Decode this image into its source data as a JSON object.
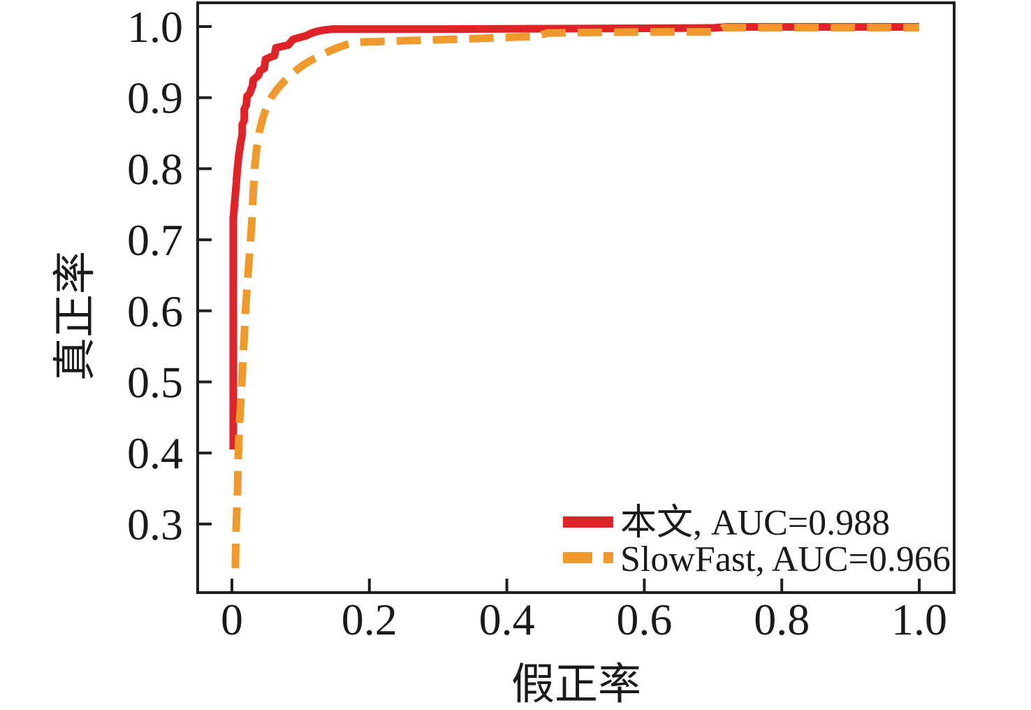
{
  "figure": {
    "background_color": "#ffffff",
    "axis_color": "#1f1f1f"
  },
  "axes": {
    "x": {
      "label": "假正率",
      "tick_labels": [
        "0",
        "0.2",
        "0.4",
        "0.6",
        "0.8",
        "1.0"
      ],
      "tick_values": [
        0,
        0.2,
        0.4,
        0.6,
        0.8,
        1.0
      ],
      "range": [
        -0.05,
        1.05
      ]
    },
    "y": {
      "label": "真正率",
      "tick_labels": [
        "1.0",
        "0.9",
        "0.8",
        "0.7",
        "0.6",
        "0.5",
        "0.4",
        "0.3"
      ],
      "tick_values": [
        1.0,
        0.9,
        0.8,
        0.7,
        0.6,
        0.5,
        0.4,
        0.3
      ],
      "range": [
        0.203,
        1.033
      ]
    }
  },
  "legend": {
    "position": "lower right",
    "items": [
      {
        "label": "本文, AUC=0.988",
        "color": "#de2428",
        "line_style": "solid"
      },
      {
        "label": "SlowFast, AUC=0.966",
        "color": "#f09a2d",
        "line_style": "dashed"
      }
    ]
  },
  "chart_data": {
    "type": "line",
    "subtype": "roc-curve",
    "title": "",
    "xlabel": "假正率",
    "ylabel": "真正率",
    "xlim": [
      -0.05,
      1.05
    ],
    "ylim": [
      0.203,
      1.033
    ],
    "x_ticks": [
      0,
      0.2,
      0.4,
      0.6,
      0.8,
      1.0
    ],
    "y_ticks": [
      0.3,
      0.4,
      0.5,
      0.6,
      0.7,
      0.8,
      0.9,
      1.0
    ],
    "grid": false,
    "legend_position": "lower right",
    "series": [
      {
        "name": "本文",
        "auc": 0.988,
        "color": "#de2428",
        "line_style": "solid",
        "points": [
          [
            0.002,
            0.405
          ],
          [
            0.002,
            0.55
          ],
          [
            0.002,
            0.65
          ],
          [
            0.002,
            0.73
          ],
          [
            0.004,
            0.752
          ],
          [
            0.006,
            0.775
          ],
          [
            0.008,
            0.8
          ],
          [
            0.01,
            0.818
          ],
          [
            0.013,
            0.838
          ],
          [
            0.015,
            0.848
          ],
          [
            0.015,
            0.862
          ],
          [
            0.018,
            0.868
          ],
          [
            0.018,
            0.884
          ],
          [
            0.021,
            0.89
          ],
          [
            0.022,
            0.902
          ],
          [
            0.026,
            0.906
          ],
          [
            0.028,
            0.912
          ],
          [
            0.03,
            0.916
          ],
          [
            0.031,
            0.925
          ],
          [
            0.036,
            0.929
          ],
          [
            0.039,
            0.932
          ],
          [
            0.041,
            0.938
          ],
          [
            0.047,
            0.941
          ],
          [
            0.049,
            0.954
          ],
          [
            0.056,
            0.957
          ],
          [
            0.062,
            0.959
          ],
          [
            0.064,
            0.97
          ],
          [
            0.073,
            0.972
          ],
          [
            0.082,
            0.974
          ],
          [
            0.089,
            0.982
          ],
          [
            0.1,
            0.985
          ],
          [
            0.108,
            0.987
          ],
          [
            0.114,
            0.99
          ],
          [
            0.123,
            0.993
          ],
          [
            0.133,
            0.995
          ],
          [
            0.147,
            0.9965
          ],
          [
            0.3,
            0.9965
          ],
          [
            0.45,
            0.997
          ],
          [
            0.6,
            0.9975
          ],
          [
            0.7,
            0.998
          ],
          [
            0.72,
            0.9995
          ],
          [
            1.0,
            0.9995
          ]
        ]
      },
      {
        "name": "SlowFast",
        "auc": 0.966,
        "color": "#f09a2d",
        "line_style": "dashed",
        "points": [
          [
            0.005,
            0.238
          ],
          [
            0.006,
            0.29
          ],
          [
            0.008,
            0.34
          ],
          [
            0.009,
            0.39
          ],
          [
            0.011,
            0.44
          ],
          [
            0.014,
            0.49
          ],
          [
            0.016,
            0.53
          ],
          [
            0.018,
            0.565
          ],
          [
            0.02,
            0.605
          ],
          [
            0.023,
            0.645
          ],
          [
            0.026,
            0.685
          ],
          [
            0.029,
            0.725
          ],
          [
            0.031,
            0.765
          ],
          [
            0.033,
            0.8
          ],
          [
            0.036,
            0.828
          ],
          [
            0.04,
            0.852
          ],
          [
            0.044,
            0.868
          ],
          [
            0.048,
            0.88
          ],
          [
            0.052,
            0.89
          ],
          [
            0.057,
            0.9
          ],
          [
            0.066,
            0.912
          ],
          [
            0.076,
            0.923
          ],
          [
            0.086,
            0.932
          ],
          [
            0.097,
            0.941
          ],
          [
            0.107,
            0.948
          ],
          [
            0.118,
            0.954
          ],
          [
            0.13,
            0.96
          ],
          [
            0.143,
            0.966
          ],
          [
            0.156,
            0.971
          ],
          [
            0.168,
            0.975
          ],
          [
            0.183,
            0.978
          ],
          [
            0.25,
            0.98
          ],
          [
            0.32,
            0.982
          ],
          [
            0.38,
            0.984
          ],
          [
            0.44,
            0.986
          ],
          [
            0.46,
            0.991
          ],
          [
            0.55,
            0.992
          ],
          [
            0.65,
            0.9925
          ],
          [
            0.705,
            0.9925
          ],
          [
            0.715,
            0.9985
          ],
          [
            1.0,
            0.9985
          ]
        ]
      }
    ]
  }
}
